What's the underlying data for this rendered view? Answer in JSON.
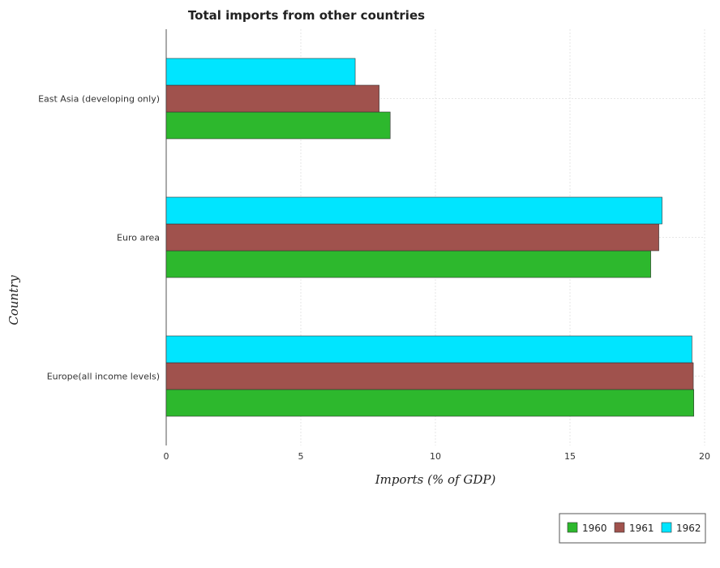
{
  "chart_data": {
    "type": "bar",
    "orientation": "horizontal",
    "title": "Total imports from other countries",
    "xlabel": "Imports (% of GDP)",
    "ylabel": "Country",
    "categories": [
      "East Asia (developing only)",
      "Euro area",
      "Europe(all income levels)"
    ],
    "series": [
      {
        "name": "1960",
        "color": "#2db82d",
        "values": [
          8.32,
          18.0,
          19.6
        ]
      },
      {
        "name": "1961",
        "color": "#a0524d",
        "values": [
          7.91,
          18.3,
          19.58
        ]
      },
      {
        "name": "1962",
        "color": "#00e5ff",
        "values": [
          7.02,
          18.42,
          19.53
        ]
      }
    ],
    "xlim": [
      0,
      20
    ],
    "xticks": [
      0,
      5,
      10,
      15,
      20
    ],
    "grid": true,
    "legend_position": "bottom-right"
  }
}
